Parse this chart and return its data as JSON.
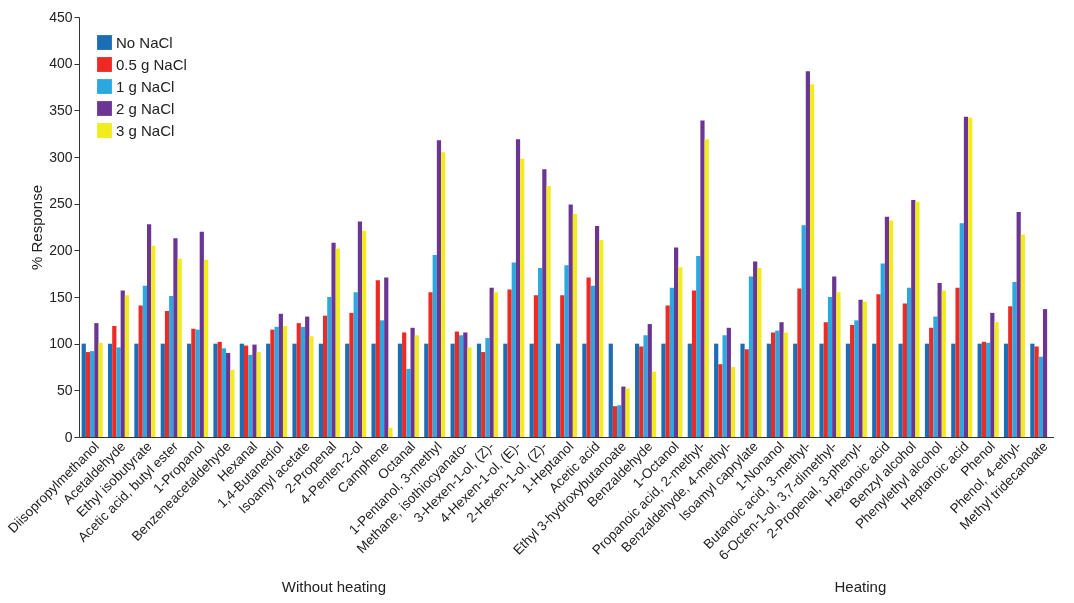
{
  "chart_data": {
    "type": "bar",
    "ylabel": "% Response",
    "ylim": [
      0,
      450
    ],
    "yticks": [
      0,
      50,
      100,
      150,
      200,
      250,
      300,
      350,
      400,
      450
    ],
    "grid": false,
    "legend": "top left",
    "annotations": [
      "Without heating",
      "Heating"
    ],
    "categories": [
      "Diisopropylmethanol",
      "Acetaldehyde",
      "Ethyl isobutyrate",
      "Acetic acid, butyl ester",
      "1-Propanol",
      "Benzeneacetaldehyde",
      "Hexanal",
      "1,4-Butanediol",
      "Isoamyl acetate",
      "2-Propenal",
      "4-Penten-2-ol",
      "Camphene",
      "Octanal",
      "1-Pentanol, 3-methyl",
      "Methane, isothiocyanato-",
      "3-Hexen-1-ol, (Z)-",
      "4-Hexen-1-ol, (E)-",
      "2-Hexen-1-ol, (Z)-",
      "1-Heptanol",
      "Acetic acid",
      "Ethyl 3-hydroxybutanoate",
      "Benzaldehyde",
      "1-Octanol",
      "Propanoic acid, 2-methyl-",
      "Benzaldehyde, 4-methyl-",
      "Isoamyl caprylate",
      "1-Nonanol",
      "Butanoic acid, 3-methyl-",
      "6-Octen-1-ol, 3,7-dimethyl-",
      "2-Propenal, 3-phenyl-",
      "Hexanoic acid",
      "Benzyl alcohol",
      "Phenylethyl alcohol",
      "Heptanoic acid",
      "Phenol",
      "Phenol, 4-ethyl-",
      "Methyl tridecanoate"
    ],
    "series": [
      {
        "name": "No NaCl",
        "color": "#1b6db4",
        "values": [
          100,
          100,
          100,
          100,
          100,
          100,
          100,
          100,
          100,
          100,
          100,
          100,
          100,
          100,
          100,
          100,
          100,
          100,
          100,
          100,
          100,
          100,
          100,
          100,
          100,
          100,
          100,
          100,
          100,
          100,
          100,
          100,
          100,
          100,
          100,
          100,
          100
        ]
      },
      {
        "name": "0.5 g NaCl",
        "color": "#ee2a24",
        "values": [
          91,
          119,
          141,
          135,
          116,
          102,
          98,
          115,
          122,
          130,
          133,
          168,
          112,
          155,
          113,
          91,
          158,
          152,
          152,
          171,
          33,
          97,
          141,
          157,
          78,
          94,
          112,
          159,
          123,
          120,
          153,
          143,
          117,
          160,
          102,
          140,
          97
        ]
      },
      {
        "name": "1 g NaCl",
        "color": "#2aa8e0",
        "values": [
          92,
          96,
          162,
          151,
          115,
          95,
          88,
          118,
          118,
          150,
          155,
          125,
          73,
          195,
          109,
          106,
          187,
          181,
          184,
          162,
          34,
          109,
          160,
          194,
          109,
          172,
          114,
          227,
          150,
          125,
          186,
          160,
          129,
          229,
          101,
          166,
          86
        ]
      },
      {
        "name": "2 g NaCl",
        "color": "#6b3693",
        "values": [
          122,
          157,
          228,
          213,
          220,
          90,
          99,
          132,
          129,
          208,
          231,
          171,
          117,
          318,
          112,
          160,
          319,
          287,
          249,
          226,
          54,
          121,
          203,
          339,
          117,
          188,
          123,
          392,
          172,
          147,
          236,
          254,
          165,
          343,
          133,
          241,
          137
        ]
      },
      {
        "name": "3 g NaCl",
        "color": "#f2ec1f",
        "values": [
          101,
          152,
          205,
          191,
          190,
          72,
          91,
          119,
          108,
          202,
          221,
          10,
          109,
          305,
          96,
          155,
          298,
          269,
          239,
          211,
          52,
          70,
          182,
          319,
          75,
          181,
          112,
          378,
          155,
          145,
          232,
          252,
          157,
          342,
          123,
          217,
          null
        ]
      }
    ]
  }
}
